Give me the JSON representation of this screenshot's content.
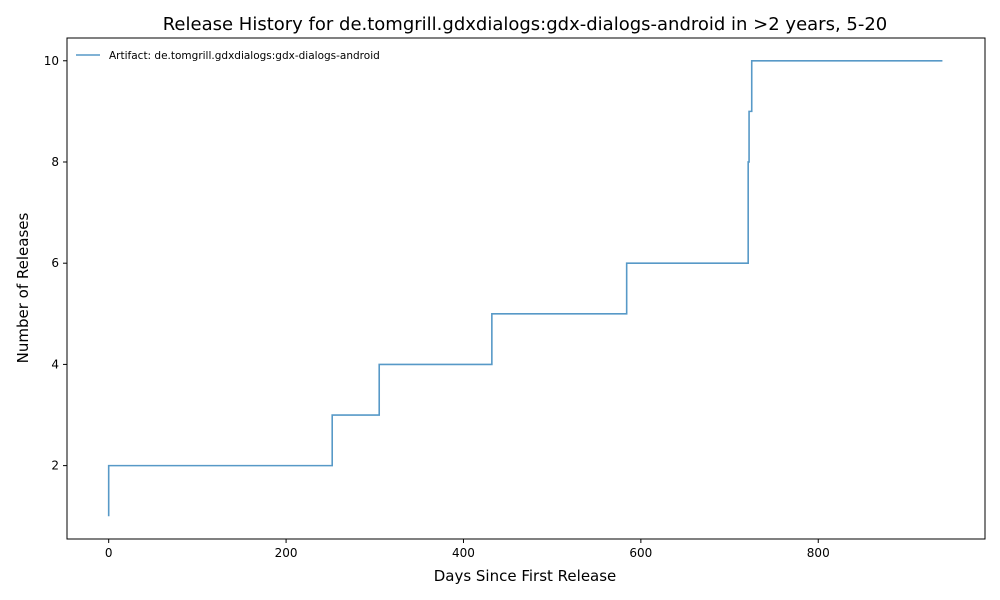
{
  "chart_data": {
    "type": "line",
    "drawstyle": "steps-post",
    "title": "Release History for de.tomgrill.gdxdialogs:gdx-dialogs-android in >2 years, 5-20",
    "xlabel": "Days Since First Release",
    "ylabel": "Number of Releases",
    "xlim": [
      -47,
      988
    ],
    "ylim": [
      0.55,
      10.45
    ],
    "xticks": [
      0,
      200,
      400,
      600,
      800
    ],
    "yticks": [
      2,
      4,
      6,
      8,
      10
    ],
    "grid": false,
    "legend_position": "top-left",
    "series": [
      {
        "name": "Artifact: de.tomgrill.gdxdialogs:gdx-dialogs-android",
        "color": "#1f77b4",
        "x": [
          0,
          0,
          252,
          305,
          432,
          584,
          721,
          722,
          725,
          940
        ],
        "y": [
          1,
          2,
          3,
          4,
          5,
          6,
          8,
          9,
          10,
          10
        ]
      }
    ]
  }
}
